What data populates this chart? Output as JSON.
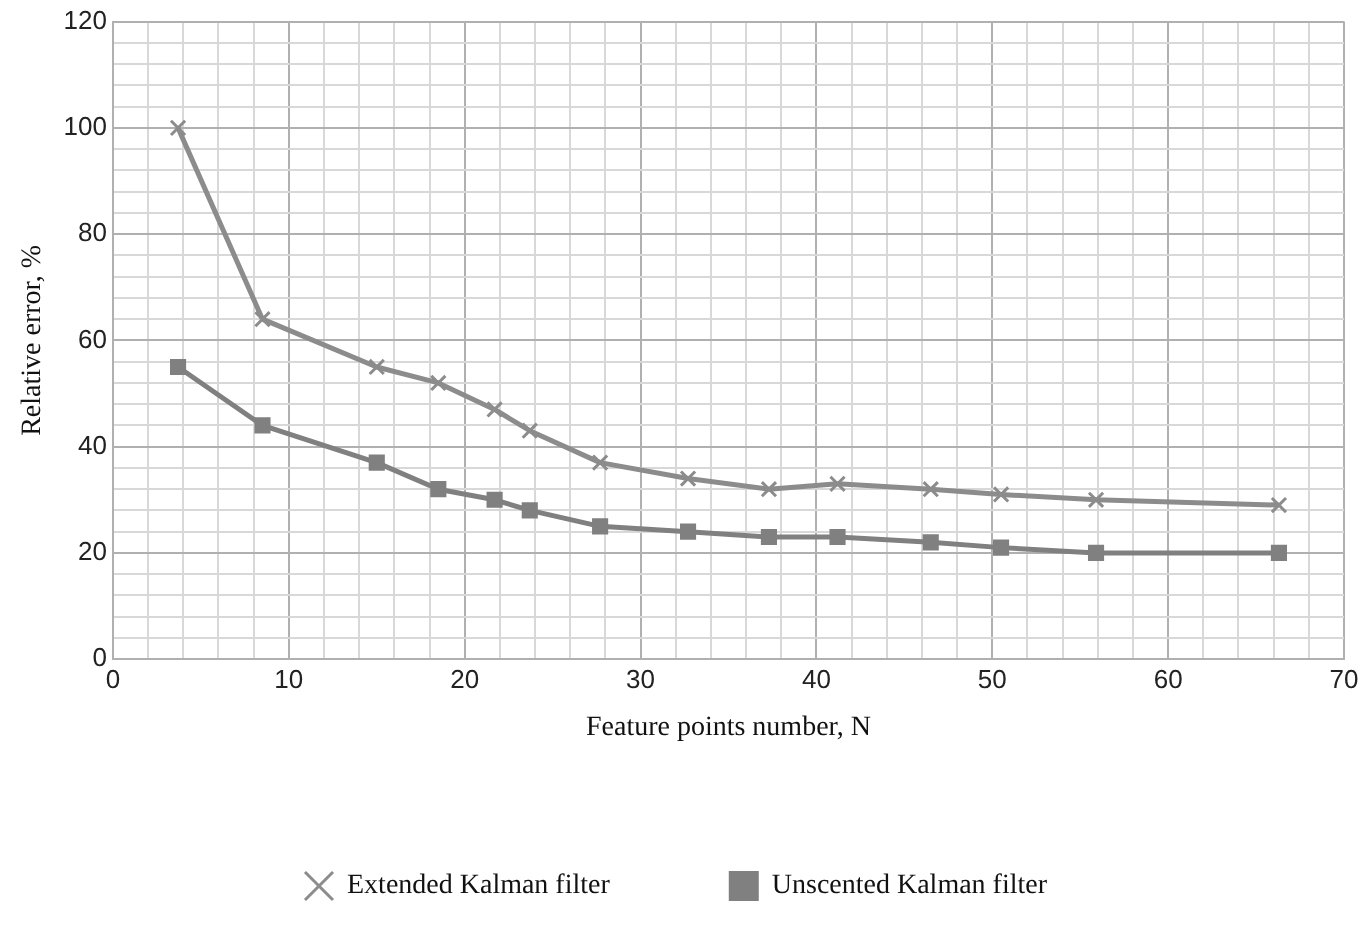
{
  "chart_data": {
    "type": "line",
    "xlabel": "Feature points number, N",
    "ylabel": "Relative error, %",
    "xlim": [
      0,
      70
    ],
    "ylim": [
      0,
      120
    ],
    "xticks": [
      0,
      {
        "value": 2,
        "label": null
      },
      {
        "value": 4,
        "label": null
      },
      {
        "value": 6,
        "label": null
      },
      {
        "value": 8,
        "label": null
      },
      10,
      {
        "value": 12,
        "label": null
      },
      {
        "value": 14,
        "label": null
      },
      {
        "value": 16,
        "label": null
      },
      {
        "value": 18,
        "label": null
      },
      20,
      {
        "value": 22,
        "label": null
      },
      {
        "value": 24,
        "label": null
      },
      {
        "value": 26,
        "label": null
      },
      {
        "value": 28,
        "label": null
      },
      30,
      {
        "value": 32,
        "label": null
      },
      {
        "value": 34,
        "label": null
      },
      {
        "value": 36,
        "label": null
      },
      {
        "value": 38,
        "label": null
      },
      40,
      {
        "value": 42,
        "label": null
      },
      {
        "value": 44,
        "label": null
      },
      {
        "value": 46,
        "label": null
      },
      {
        "value": 48,
        "label": null
      },
      50,
      {
        "value": 52,
        "label": null
      },
      {
        "value": 54,
        "label": null
      },
      {
        "value": 56,
        "label": null
      },
      {
        "value": 58,
        "label": null
      },
      60,
      {
        "value": 62,
        "label": null
      },
      {
        "value": 64,
        "label": null
      },
      {
        "value": 66,
        "label": null
      },
      {
        "value": 68,
        "label": null
      },
      70
    ],
    "yticks": [
      0,
      {
        "value": 4,
        "label": null
      },
      {
        "value": 8,
        "label": null
      },
      {
        "value": 12,
        "label": null
      },
      {
        "value": 16,
        "label": null
      },
      20,
      {
        "value": 24,
        "label": null
      },
      {
        "value": 28,
        "label": null
      },
      {
        "value": 32,
        "label": null
      },
      {
        "value": 36,
        "label": null
      },
      40,
      {
        "value": 44,
        "label": null
      },
      {
        "value": 48,
        "label": null
      },
      {
        "value": 52,
        "label": null
      },
      {
        "value": 56,
        "label": null
      },
      60,
      {
        "value": 64,
        "label": null
      },
      {
        "value": 68,
        "label": null
      },
      {
        "value": 72,
        "label": null
      },
      {
        "value": 76,
        "label": null
      },
      80,
      {
        "value": 84,
        "label": null
      },
      {
        "value": 88,
        "label": null
      },
      {
        "value": 92,
        "label": null
      },
      {
        "value": 96,
        "label": null
      },
      100,
      {
        "value": 104,
        "label": null
      },
      {
        "value": 108,
        "label": null
      },
      {
        "value": 112,
        "label": null
      },
      {
        "value": 116,
        "label": null
      },
      120
    ],
    "grid": true,
    "legend": "bottom",
    "series": [
      {
        "name": "Extended Kalman filter",
        "color": "#8c8c8c",
        "marker": "cross",
        "x": [
          3.7,
          8.5,
          15,
          18.5,
          21.7,
          23.7,
          27.7,
          32.7,
          37.3,
          41.2,
          46.5,
          50.5,
          55.9,
          66.3
        ],
        "values": [
          100,
          64,
          55,
          52,
          47,
          43,
          37,
          34,
          32,
          33,
          32,
          31,
          30,
          29
        ]
      },
      {
        "name": "Unscented Kalman filter",
        "color": "#808080",
        "marker": "square",
        "x": [
          3.7,
          8.5,
          15,
          18.5,
          21.7,
          23.7,
          27.7,
          32.7,
          37.3,
          41.2,
          46.5,
          50.5,
          55.9,
          66.3
        ],
        "values": [
          55,
          44,
          37,
          32,
          30,
          28,
          25,
          24,
          23,
          23,
          22,
          21,
          20,
          20
        ]
      }
    ]
  }
}
